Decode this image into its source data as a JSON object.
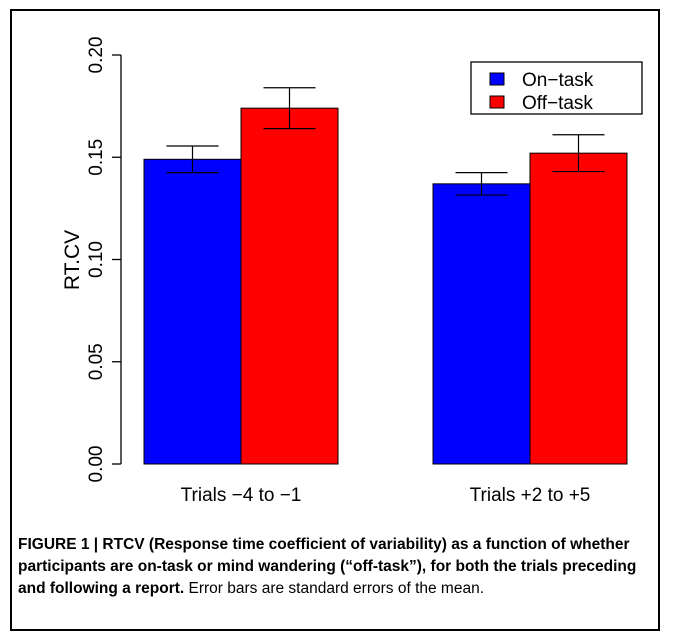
{
  "chart_data": {
    "type": "bar",
    "ylabel": "RT.CV",
    "xlabel": "",
    "ylim": [
      0,
      0.2
    ],
    "yticks": [
      "0.00",
      "0.05",
      "0.10",
      "0.15",
      "0.20"
    ],
    "categories": [
      "Trials −4 to −1",
      "Trials +2 to +5"
    ],
    "series": [
      {
        "name": "On−task",
        "color": "#0000ff",
        "values": [
          0.149,
          0.137
        ],
        "errors": [
          0.0065,
          0.0055
        ]
      },
      {
        "name": "Off−task",
        "color": "#ff0000",
        "values": [
          0.174,
          0.152
        ],
        "errors": [
          0.01,
          0.009
        ]
      }
    ],
    "legend_position": "top-right",
    "grid": false
  },
  "caption": {
    "bold": "FIGURE 1 | RTCV (Response time coefficient of variability) as a function of whether participants are on-task or mind wandering (“off-task”), for both the trials preceding and following a report.",
    "normal": " Error bars are standard errors of the mean."
  }
}
